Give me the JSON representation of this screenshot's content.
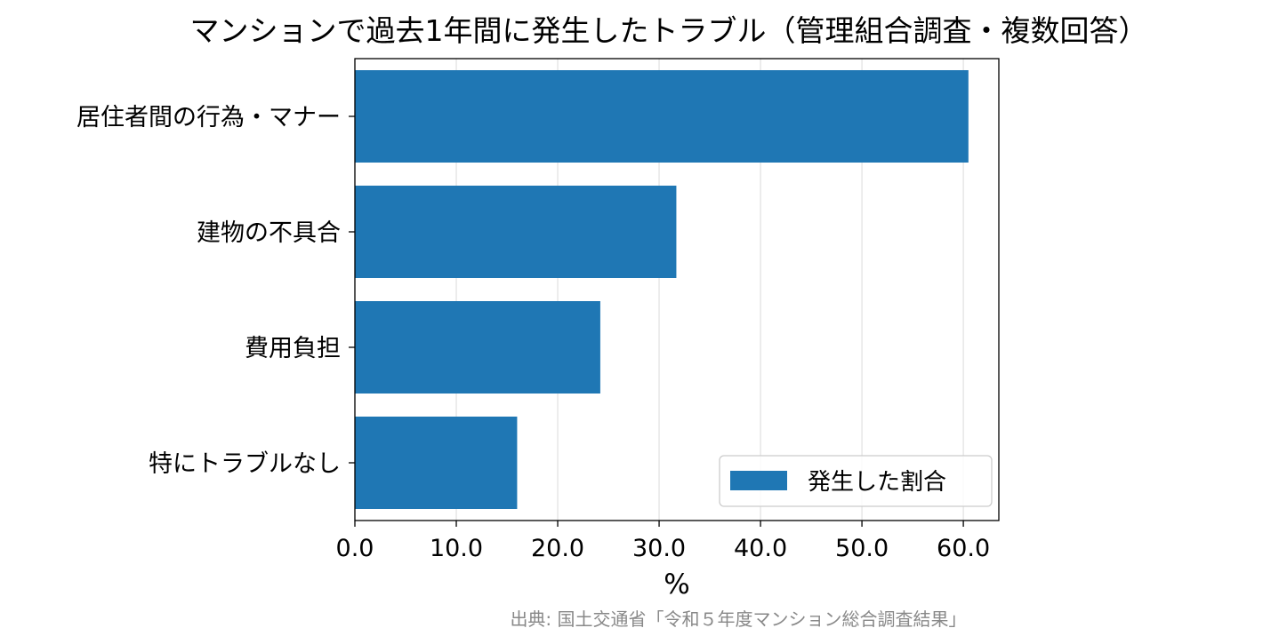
{
  "chart_data": {
    "type": "bar",
    "orientation": "horizontal",
    "title": "マンションで過去1年間に発生したトラブル（管理組合調査・複数回答）",
    "xlabel": "%",
    "ylabel": "",
    "categories": [
      "居住者間の行為・マナー",
      "建物の不具合",
      "費用負担",
      "特にトラブルなし"
    ],
    "series": [
      {
        "name": "発生した割合",
        "values": [
          60.5,
          31.7,
          24.2,
          16.0
        ],
        "color": "#1f77b4"
      }
    ],
    "xlim": [
      0,
      63.5
    ],
    "xticks": [
      0,
      10,
      20,
      30,
      40,
      50,
      60
    ],
    "xtick_labels": [
      "0.0",
      "10.0",
      "20.0",
      "30.0",
      "40.0",
      "50.0",
      "60.0"
    ],
    "grid": "x",
    "legend_position": "lower-right",
    "source": "出典: 国土交通省「令和５年度マンション総合調査結果」"
  }
}
